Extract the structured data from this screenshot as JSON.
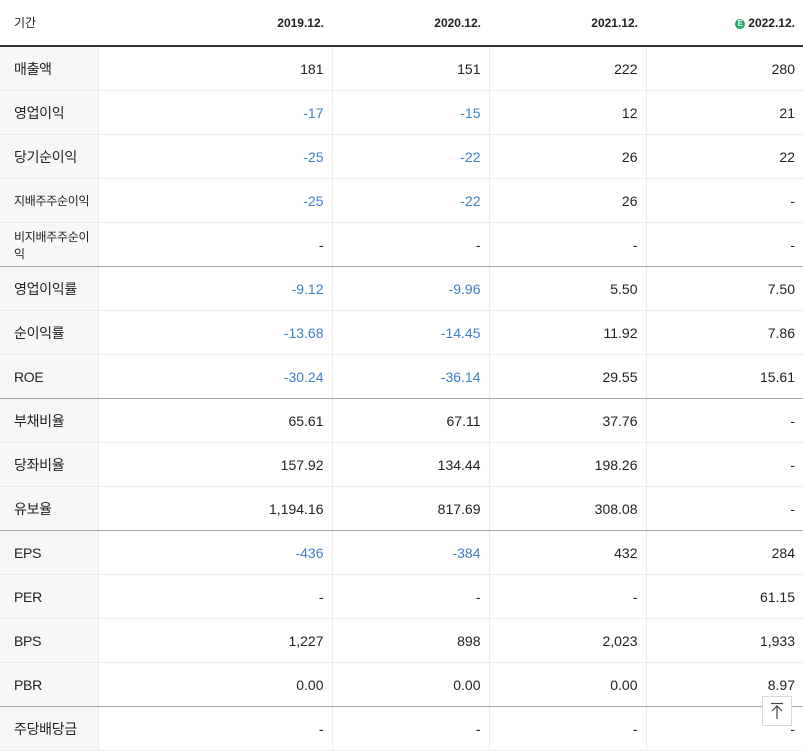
{
  "header": {
    "label": "기간",
    "periods": [
      "2019.12.",
      "2020.12.",
      "2021.12.",
      "2022.12."
    ],
    "estimate_icon": "E"
  },
  "rows": [
    {
      "label": "매출액",
      "values": [
        "181",
        "151",
        "222",
        "280"
      ]
    },
    {
      "label": "영업이익",
      "values": [
        "-17",
        "-15",
        "12",
        "21"
      ]
    },
    {
      "label": "당기순이익",
      "values": [
        "-25",
        "-22",
        "26",
        "22"
      ]
    },
    {
      "label": "지배주주순이익",
      "values": [
        "-25",
        "-22",
        "26",
        "-"
      ]
    },
    {
      "label": "비지배주주순이익",
      "values": [
        "-",
        "-",
        "-",
        "-"
      ]
    },
    {
      "label": "영업이익률",
      "values": [
        "-9.12",
        "-9.96",
        "5.50",
        "7.50"
      ]
    },
    {
      "label": "순이익률",
      "values": [
        "-13.68",
        "-14.45",
        "11.92",
        "7.86"
      ]
    },
    {
      "label": "ROE",
      "values": [
        "-30.24",
        "-36.14",
        "29.55",
        "15.61"
      ]
    },
    {
      "label": "부채비율",
      "values": [
        "65.61",
        "67.11",
        "37.76",
        "-"
      ]
    },
    {
      "label": "당좌비율",
      "values": [
        "157.92",
        "134.44",
        "198.26",
        "-"
      ]
    },
    {
      "label": "유보율",
      "values": [
        "1,194.16",
        "817.69",
        "308.08",
        "-"
      ]
    },
    {
      "label": "EPS",
      "values": [
        "-436",
        "-384",
        "432",
        "284"
      ]
    },
    {
      "label": "PER",
      "values": [
        "-",
        "-",
        "-",
        "61.15"
      ]
    },
    {
      "label": "BPS",
      "values": [
        "1,227",
        "898",
        "2,023",
        "1,933"
      ]
    },
    {
      "label": "PBR",
      "values": [
        "0.00",
        "0.00",
        "0.00",
        "8.97"
      ]
    },
    {
      "label": "주당배당금",
      "values": [
        "-",
        "-",
        "-",
        "-"
      ]
    }
  ],
  "colors": {
    "negative": "#3d7fc9",
    "estimate": "#1ea86a"
  },
  "icons": {
    "scroll_top": "arrow-up-icon"
  }
}
